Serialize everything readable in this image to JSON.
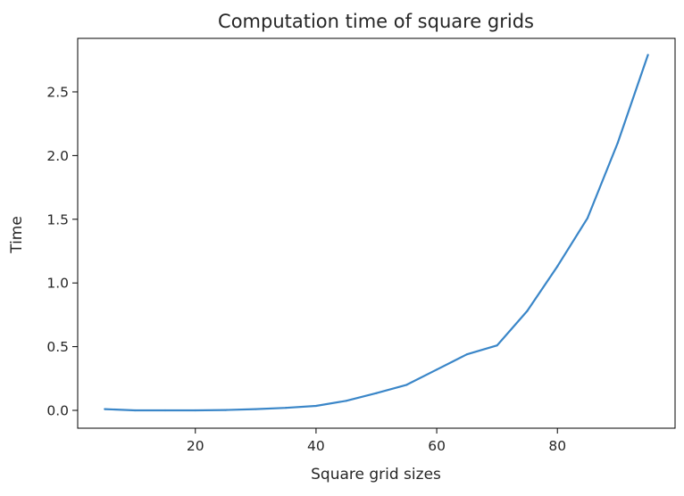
{
  "chart_data": {
    "type": "line",
    "title": "Computation time of square grids",
    "xlabel": "Square grid sizes",
    "ylabel": "Time",
    "xlim": [
      0.5,
      99.5
    ],
    "ylim": [
      -0.14,
      2.92
    ],
    "xticks": [
      20,
      40,
      60,
      80
    ],
    "xtick_labels": [
      "20",
      "40",
      "60",
      "80"
    ],
    "yticks": [
      0.0,
      0.5,
      1.0,
      1.5,
      2.0,
      2.5
    ],
    "ytick_labels": [
      "0.0",
      "0.5",
      "1.0",
      "1.5",
      "2.0",
      "2.5"
    ],
    "grid": false,
    "series": [
      {
        "color": "#3a86c8",
        "x": [
          5,
          10,
          15,
          20,
          25,
          30,
          35,
          40,
          45,
          50,
          55,
          60,
          65,
          70,
          75,
          80,
          85,
          90,
          95
        ],
        "y": [
          0.01,
          0.0,
          0.0,
          0.0,
          0.003,
          0.01,
          0.02,
          0.035,
          0.075,
          0.135,
          0.2,
          0.32,
          0.44,
          0.51,
          0.78,
          1.13,
          1.51,
          2.1,
          2.79
        ]
      }
    ]
  }
}
